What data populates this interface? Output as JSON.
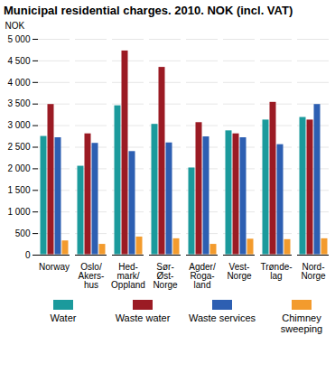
{
  "chart_data": {
    "type": "bar",
    "title": "Municipal residential charges. 2010. NOK (incl. VAT)",
    "y_label": "NOK",
    "categories": [
      "Norway",
      "Oslo/\nAkers-\nhus",
      "Hed-\nmark/\nOppland",
      "Sør-\nØst-\nNorge",
      "Agder/\nRoga-\nland",
      "Vest-\nNorge",
      "Trønde-\nlag",
      "Nord-\nNorge"
    ],
    "series": [
      {
        "name": "Water",
        "color": "#1b9a9c",
        "values": [
          2760,
          2070,
          3470,
          3040,
          2030,
          2890,
          3140,
          3200
        ]
      },
      {
        "name": "Waste water",
        "color": "#9b1b24",
        "values": [
          3500,
          2820,
          4740,
          4360,
          3080,
          2820,
          3550,
          3140
        ]
      },
      {
        "name": "Waste services",
        "color": "#2d5fb2",
        "values": [
          2730,
          2600,
          2410,
          2610,
          2750,
          2730,
          2570,
          3500
        ]
      },
      {
        "name": "Chimney sweeping",
        "color": "#f39b2d",
        "values": [
          340,
          260,
          430,
          390,
          260,
          380,
          370,
          390
        ]
      }
    ],
    "ylim": [
      0,
      5000
    ],
    "yticks": [
      0,
      500,
      {
        "value": 1000,
        "label": "1 000"
      },
      {
        "value": 1500,
        "label": "1 500"
      },
      {
        "value": 2000,
        "label": "2 000"
      },
      {
        "value": 2500,
        "label": "2 500"
      },
      {
        "value": 3000,
        "label": "3 000"
      },
      {
        "value": 3500,
        "label": "3 500"
      },
      {
        "value": 4000,
        "label": "4 000"
      },
      {
        "value": 4500,
        "label": "4 500"
      },
      {
        "value": 5000,
        "label": "5 000"
      }
    ],
    "grid": true,
    "legend": "bottom"
  }
}
